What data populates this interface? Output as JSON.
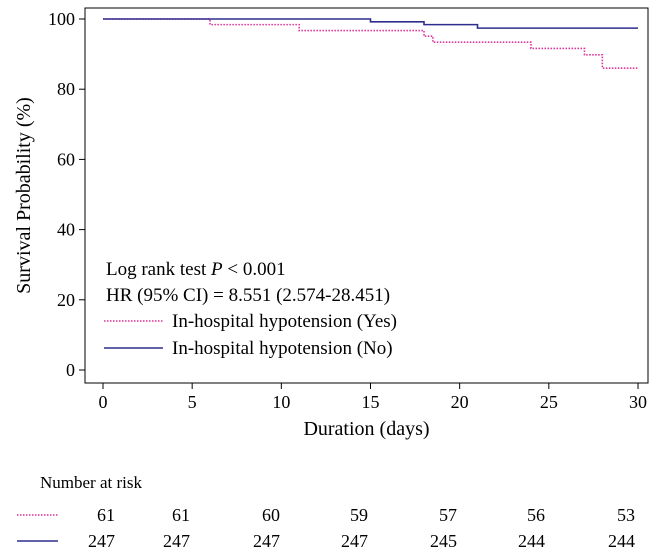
{
  "chart_data": {
    "type": "line",
    "xlabel": "Duration (days)",
    "ylabel": "Survival Probability (%)",
    "xlim": [
      0,
      30
    ],
    "ylim": [
      0,
      100
    ],
    "xticks": [
      "0",
      "5",
      "10",
      "15",
      "20",
      "25",
      "30"
    ],
    "yticks": [
      "0",
      "20",
      "40",
      "60",
      "80",
      "100"
    ],
    "grid": false,
    "annotations": {
      "test_prefix": "Log rank test ",
      "test_p": "P",
      "test_suffix": " < 0.001",
      "hr": "HR (95% CI) = 8.551 (2.574-28.451)"
    },
    "legend_position": "lower-left",
    "series": [
      {
        "name": "In-hospital hypotension (Yes)",
        "color": "#e0309a",
        "dash": "dotted",
        "steps": [
          [
            0,
            100
          ],
          [
            6,
            98.4
          ],
          [
            11,
            96.7
          ],
          [
            18,
            95.1
          ],
          [
            18.5,
            93.4
          ],
          [
            19,
            93.4
          ],
          [
            24,
            91.6
          ],
          [
            27,
            89.8
          ],
          [
            28,
            86
          ]
        ]
      },
      {
        "name": "In-hospital hypotension (No)",
        "color": "#2e2e8f",
        "dash": "solid",
        "steps": [
          [
            0,
            100
          ],
          [
            15,
            99.2
          ],
          [
            18,
            98.4
          ],
          [
            21,
            97.4
          ]
        ]
      }
    ],
    "risk_table": {
      "title": "Number at risk",
      "times": [
        0,
        5,
        10,
        15,
        20,
        25,
        30
      ],
      "rows": [
        {
          "series": 0,
          "values": [
            "61",
            "61",
            "60",
            "59",
            "57",
            "56",
            "53"
          ]
        },
        {
          "series": 1,
          "values": [
            "247",
            "247",
            "247",
            "247",
            "245",
            "244",
            "244"
          ]
        }
      ]
    }
  }
}
